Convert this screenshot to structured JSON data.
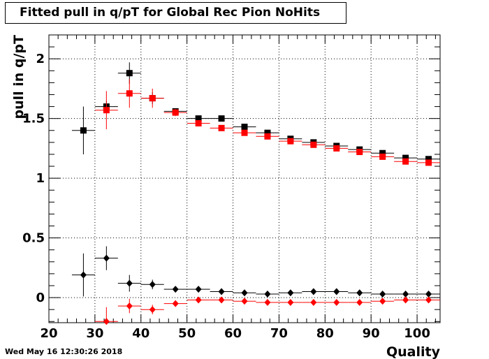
{
  "chart_data": {
    "type": "scatter",
    "title": "Fitted pull in q/pT for Global Rec Pion NoHits",
    "xlabel": "Quality",
    "ylabel": "pull in q/pT",
    "xlim": [
      20,
      105
    ],
    "ylim": [
      -0.21,
      2.2
    ],
    "x_ticks": [
      20,
      30,
      40,
      50,
      60,
      70,
      80,
      90,
      100
    ],
    "x_tick_labels": [
      "20",
      "30",
      "40",
      "50",
      "60",
      "70",
      "80",
      "90",
      "100"
    ],
    "y_ticks": [
      0,
      0.5,
      1,
      1.5,
      2
    ],
    "y_tick_labels": [
      "0",
      "0.5",
      "1",
      "1.5",
      "2"
    ],
    "grid": true,
    "series": [
      {
        "color": "#000000",
        "marker": "square",
        "x": [
          27.5,
          32.5,
          37.5,
          42.5,
          47.5,
          52.5,
          57.5,
          62.5,
          67.5,
          72.5,
          77.5,
          82.5,
          87.5,
          92.5,
          97.5,
          102.5
        ],
        "y": [
          1.4,
          1.6,
          1.88,
          1.67,
          1.56,
          1.5,
          1.5,
          1.43,
          1.38,
          1.33,
          1.3,
          1.27,
          1.24,
          1.21,
          1.17,
          1.16
        ],
        "yerr": [
          0.2,
          0.05,
          0.09,
          0.05,
          0.02,
          0.01,
          0.01,
          0.01,
          0.01,
          0.01,
          0.01,
          0.01,
          0.01,
          0.01,
          0.01,
          0.01
        ]
      },
      {
        "color": "#ff0000",
        "marker": "square",
        "x": [
          32.5,
          37.5,
          42.5,
          47.5,
          52.5,
          57.5,
          62.5,
          67.5,
          72.5,
          77.5,
          82.5,
          87.5,
          92.5,
          97.5,
          102.5
        ],
        "y": [
          1.57,
          1.71,
          1.67,
          1.55,
          1.46,
          1.42,
          1.38,
          1.35,
          1.31,
          1.28,
          1.25,
          1.22,
          1.18,
          1.14,
          1.13
        ],
        "yerr": [
          0.16,
          0.12,
          0.08,
          0.03,
          0.01,
          0.01,
          0.01,
          0.01,
          0.01,
          0.01,
          0.01,
          0.01,
          0.01,
          0.01,
          0.01
        ]
      },
      {
        "color": "#000000",
        "marker": "circle",
        "x": [
          27.5,
          32.5,
          37.5,
          42.5,
          47.5,
          52.5,
          57.5,
          62.5,
          67.5,
          72.5,
          77.5,
          82.5,
          87.5,
          92.5,
          97.5,
          102.5
        ],
        "y": [
          0.19,
          0.33,
          0.12,
          0.11,
          0.07,
          0.07,
          0.05,
          0.04,
          0.03,
          0.04,
          0.05,
          0.05,
          0.04,
          0.03,
          0.03,
          0.03
        ],
        "yerr": [
          0.18,
          0.1,
          0.07,
          0.04,
          0.02,
          0.01,
          0.01,
          0.01,
          0.01,
          0.01,
          0.01,
          0.01,
          0.01,
          0.01,
          0.01,
          0.01
        ]
      },
      {
        "color": "#ff0000",
        "marker": "circle",
        "x": [
          32.5,
          37.5,
          42.5,
          47.5,
          52.5,
          57.5,
          62.5,
          67.5,
          72.5,
          77.5,
          82.5,
          87.5,
          92.5,
          97.5,
          102.5
        ],
        "y": [
          -0.2,
          -0.07,
          -0.1,
          -0.05,
          -0.02,
          -0.02,
          -0.03,
          -0.04,
          -0.04,
          -0.04,
          -0.04,
          -0.04,
          -0.03,
          -0.02,
          -0.02
        ],
        "yerr": [
          0.12,
          0.06,
          0.04,
          0.02,
          0.01,
          0.01,
          0.01,
          0.01,
          0.01,
          0.01,
          0.01,
          0.01,
          0.01,
          0.01,
          0.01
        ]
      }
    ]
  },
  "timestamp": "Wed May 16 12:30:26 2018"
}
